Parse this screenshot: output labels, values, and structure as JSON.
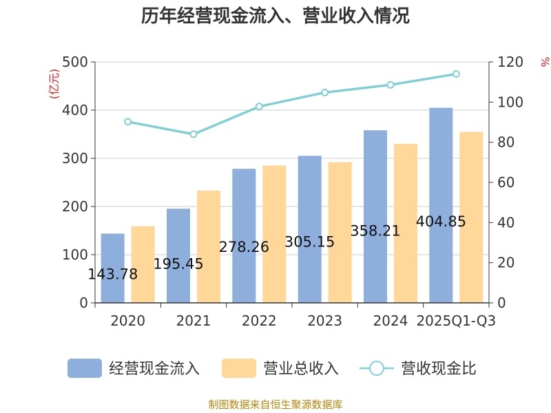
{
  "chart_data": {
    "type": "bar",
    "title": "历年经营现金流入、营业收入情况",
    "categories": [
      "2020",
      "2021",
      "2022",
      "2023",
      "2024",
      "2025Q1-Q3"
    ],
    "series": [
      {
        "name": "经营现金流入",
        "type": "bar",
        "axis": "left",
        "color": "#8eaedb",
        "values": [
          143.78,
          195.45,
          278.26,
          305.15,
          358.21,
          404.85
        ],
        "labels": [
          "143.78",
          "195.45",
          "278.26",
          "305.15",
          "358.21",
          "404.85"
        ]
      },
      {
        "name": "营业总收入",
        "type": "bar",
        "axis": "left",
        "color": "#ffd899",
        "values": [
          159,
          233,
          285,
          292,
          330,
          355
        ]
      },
      {
        "name": "营收现金比",
        "type": "line",
        "axis": "right",
        "color": "#7fd0d4",
        "values": [
          90.2,
          84.0,
          97.8,
          104.8,
          108.6,
          114.0
        ]
      }
    ],
    "yleft": {
      "label": "(亿元)",
      "min": 0,
      "max": 500,
      "ticks": [
        0,
        100,
        200,
        300,
        400,
        500
      ]
    },
    "yright": {
      "label": "%",
      "min": 0,
      "max": 120,
      "ticks": [
        0,
        20,
        40,
        60,
        80,
        100,
        120
      ]
    },
    "grid": true,
    "legend": "bottom"
  },
  "footer": {
    "source": "制图数据来自恒生聚源数据库"
  }
}
